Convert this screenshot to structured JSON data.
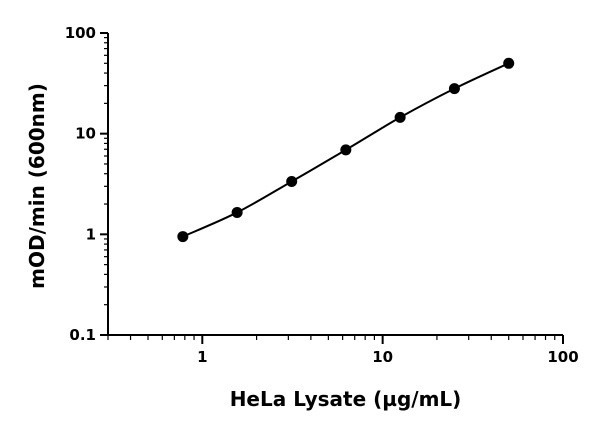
{
  "chart_data": {
    "type": "scatter",
    "xlabel": "HeLa Lysate (µg/mL)",
    "ylabel": "mOD/min (600nm)",
    "xscale": "log",
    "yscale": "log",
    "xlim": [
      0.3,
      100
    ],
    "ylim": [
      0.1,
      100
    ],
    "x_ticks": [
      1,
      10,
      100
    ],
    "x_tick_labels": [
      "1",
      "10",
      "100"
    ],
    "y_ticks": [
      0.1,
      1,
      10,
      100
    ],
    "y_tick_labels": [
      "0.1",
      "1",
      "10",
      "100"
    ],
    "grid": false,
    "legend": "none",
    "series": [
      {
        "x": [
          0.78,
          1.56,
          3.13,
          6.25,
          12.5,
          25,
          50
        ],
        "y": [
          0.95,
          1.65,
          3.35,
          6.9,
          14.5,
          28,
          50
        ],
        "fit": "smooth-curve"
      }
    ],
    "colors": {
      "marker": "#000000",
      "line": "#000000",
      "axis": "#000000"
    }
  }
}
